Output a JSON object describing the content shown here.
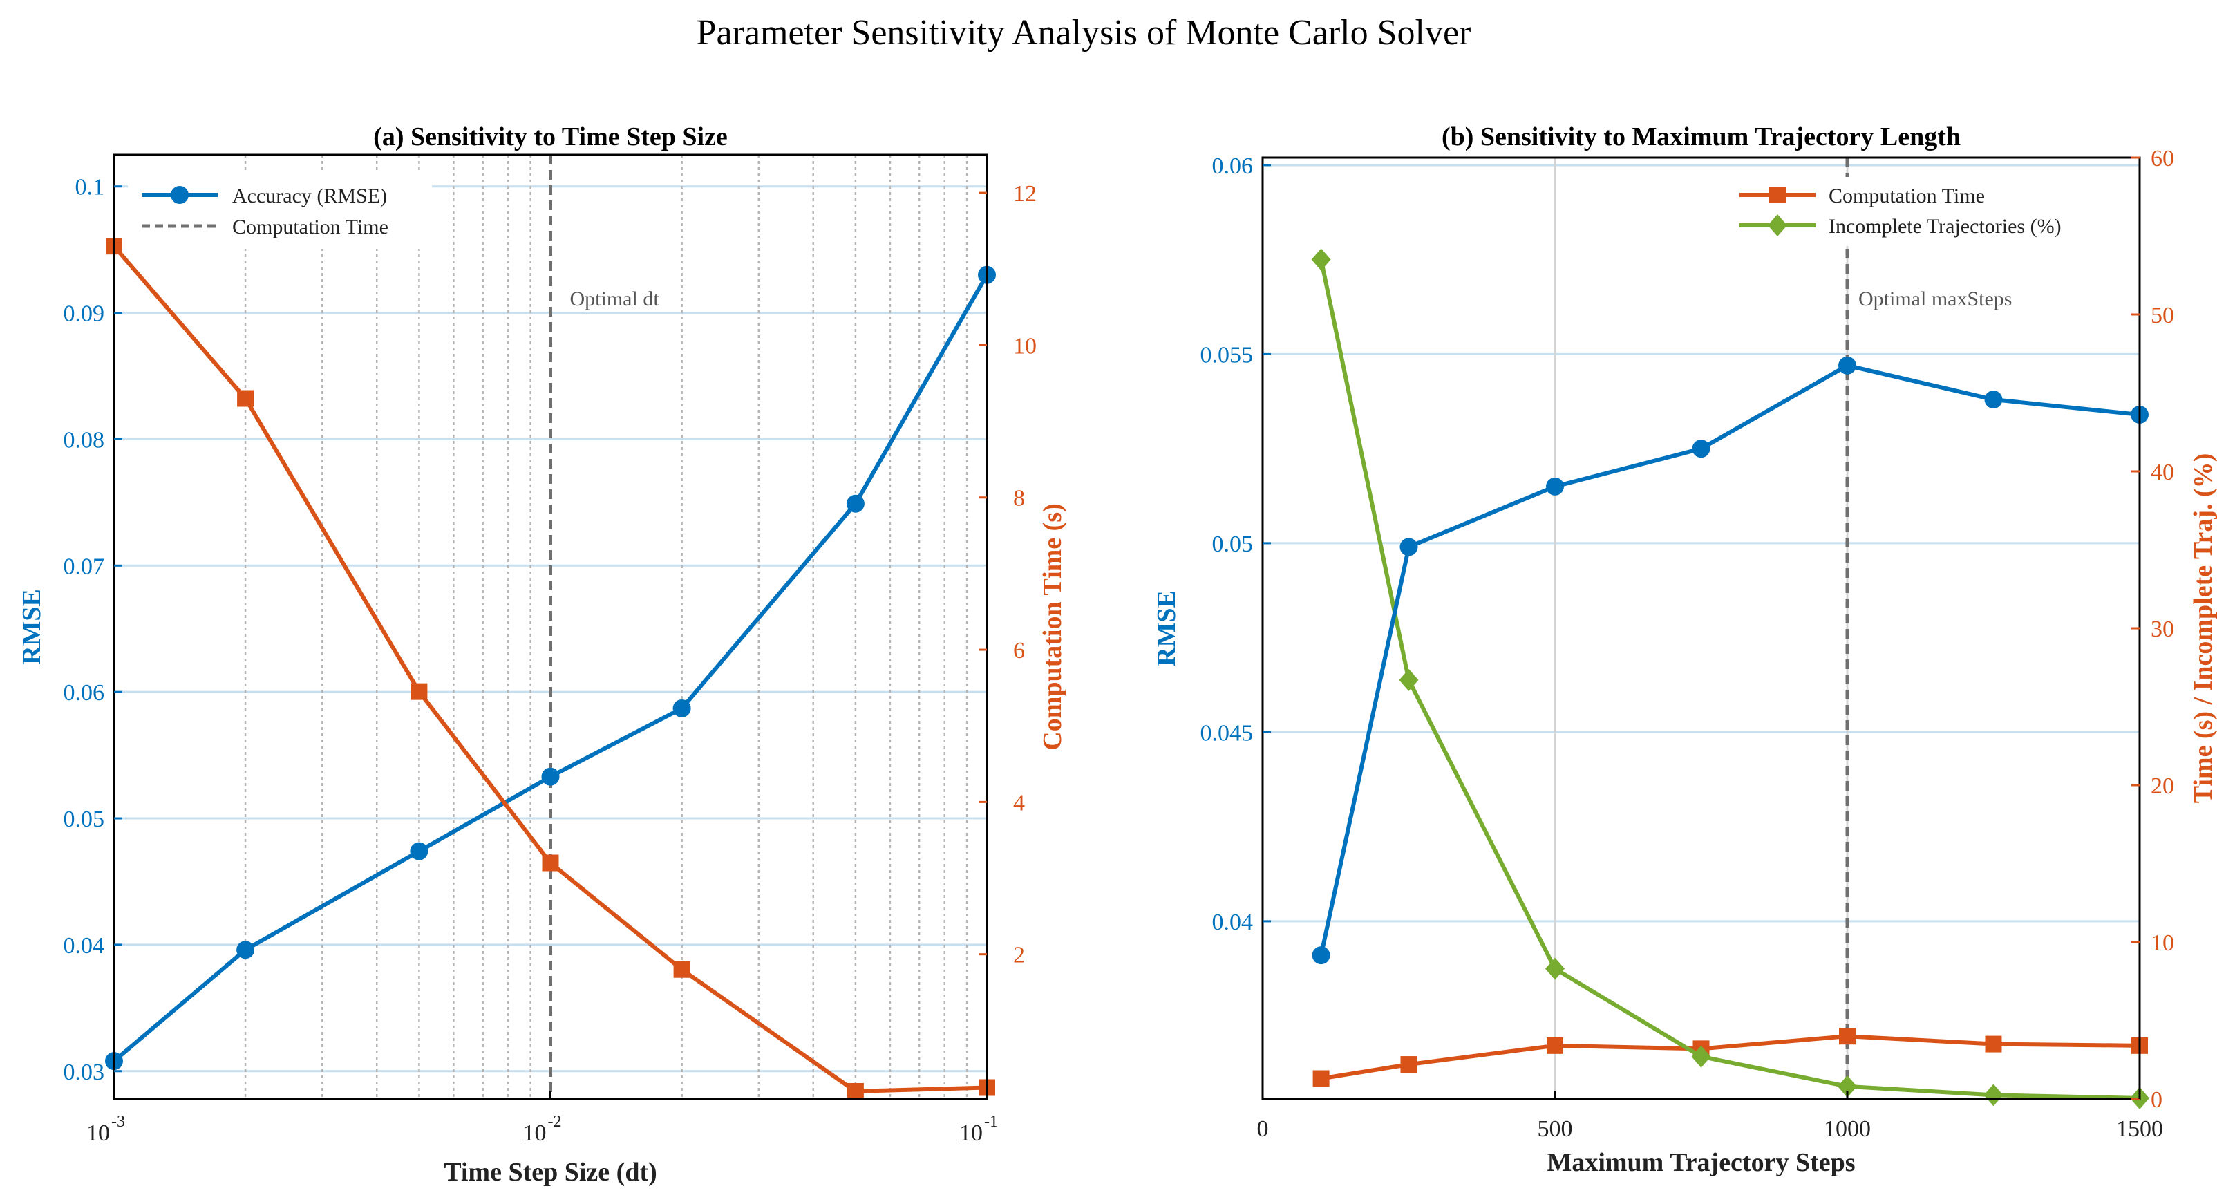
{
  "figure_title": "Parameter Sensitivity Analysis of Monte Carlo Solver",
  "colors": {
    "blue": "#0072BD",
    "orange": "#D95319",
    "green": "#77AC30",
    "grid": "#c7dfee",
    "vline": "#707070"
  },
  "chart_data": [
    {
      "type": "line",
      "title": "(a) Sensitivity to Time Step Size",
      "xlabel": "Time Step Size (dt)",
      "ylabel_left": "RMSE",
      "ylabel_right": "Computation Time (s)",
      "xscale": "log",
      "xlim": [
        0.001,
        0.1
      ],
      "ylim_left": [
        0.0278,
        0.1025
      ],
      "ylim_right": [
        0.1,
        12.5
      ],
      "x_ticks": [
        {
          "base": "10",
          "exp": "-3"
        },
        {
          "base": "10",
          "exp": "-2"
        },
        {
          "base": "10",
          "exp": "-1"
        }
      ],
      "y_left_ticks": [
        "0.03",
        "0.04",
        "0.05",
        "0.06",
        "0.07",
        "0.08",
        "0.09",
        "0.1"
      ],
      "y_right_ticks": [
        "2",
        "4",
        "6",
        "8",
        "10",
        "12"
      ],
      "x": [
        0.001,
        0.002,
        0.005,
        0.01,
        0.02,
        0.05,
        0.1
      ],
      "series": [
        {
          "name": "Accuracy (RMSE)",
          "axis": "left",
          "marker": "circle",
          "color": "#0072BD",
          "values": [
            0.0308,
            0.0396,
            0.0474,
            0.0533,
            0.0587,
            0.0749,
            0.093
          ]
        },
        {
          "name": "Computation Time",
          "axis": "right",
          "marker": "square",
          "color": "#D95319",
          "values": [
            11.3,
            9.3,
            5.45,
            3.2,
            1.8,
            0.2,
            0.25
          ]
        }
      ],
      "legend": {
        "location": "top-left",
        "entries": [
          {
            "label": "Accuracy (RMSE)",
            "style": "blue-line-circle"
          },
          {
            "label": "Computation Time",
            "style": "gray-dashed"
          }
        ]
      },
      "vline": {
        "x": 0.01,
        "label": "Optimal dt"
      }
    },
    {
      "type": "line",
      "title": "(b) Sensitivity to Maximum Trajectory Length",
      "xlabel": "Maximum Trajectory Steps",
      "ylabel_left": "RMSE",
      "ylabel_right": "Time (s) / Incomplete Traj. (%)",
      "xlim": [
        0,
        1500
      ],
      "ylim_left": [
        0.0353,
        0.0602
      ],
      "ylim_right": [
        0,
        60
      ],
      "x_ticks": [
        "0",
        "500",
        "1000",
        "1500"
      ],
      "y_left_ticks": [
        "0.04",
        "0.045",
        "0.05",
        "0.055",
        "0.06"
      ],
      "y_right_ticks": [
        "0",
        "10",
        "20",
        "30",
        "40",
        "50",
        "60"
      ],
      "x": [
        100,
        250,
        500,
        750,
        1000,
        1250,
        1500
      ],
      "series": [
        {
          "name": "RMSE",
          "axis": "left",
          "marker": "circle",
          "color": "#0072BD",
          "values": [
            0.0391,
            0.0499,
            0.0515,
            0.0525,
            0.0547,
            0.0538,
            0.0534
          ]
        },
        {
          "name": "Computation Time",
          "axis": "right",
          "marker": "square",
          "color": "#D95319",
          "values": [
            1.3,
            2.2,
            3.4,
            3.2,
            4.0,
            3.5,
            3.4
          ]
        },
        {
          "name": "Incomplete Trajectories (%)",
          "axis": "right",
          "marker": "diamond",
          "color": "#77AC30",
          "values": [
            53.5,
            26.7,
            8.3,
            2.7,
            0.8,
            0.25,
            0.05
          ]
        }
      ],
      "legend": {
        "location": "top-right",
        "entries": [
          {
            "label": "Computation Time",
            "style": "orange-line-square"
          },
          {
            "label": "Incomplete Trajectories (%)",
            "style": "green-line-diamond"
          }
        ]
      },
      "vline": {
        "x": 1000,
        "label": "Optimal maxSteps"
      }
    }
  ]
}
